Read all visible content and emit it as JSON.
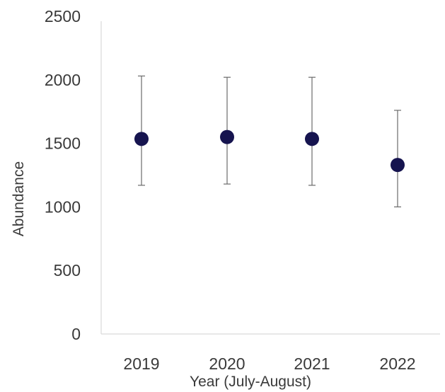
{
  "chart_data": {
    "type": "scatter",
    "title": "",
    "xlabel": "Year (July-August)",
    "ylabel": "Abundance",
    "categories": [
      "2019",
      "2020",
      "2021",
      "2022"
    ],
    "series": [
      {
        "values": [
          1535,
          1550,
          1535,
          1330
        ],
        "error_low": [
          1170,
          1180,
          1170,
          1000
        ],
        "error_high": [
          2030,
          2020,
          2020,
          1760
        ]
      }
    ],
    "yticks": [
      "0",
      "500",
      "1000",
      "1500",
      "2000",
      "2500"
    ],
    "ylim": [
      0,
      2500
    ],
    "grid": false,
    "legend": "none",
    "colors": {
      "marker": "#16144f",
      "error_bar": "#6b6b6b",
      "axis": "#d9d9d9",
      "text": "#3a3a3a"
    }
  }
}
